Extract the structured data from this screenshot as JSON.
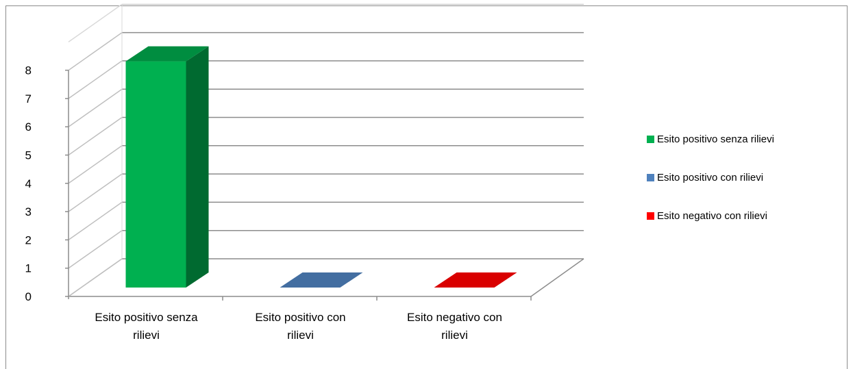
{
  "chart_data": {
    "type": "bar",
    "style": "3d-column",
    "categories": [
      "Esito positivo senza rilievi",
      "Esito positivo con rilievi",
      "Esito negativo con rilievi"
    ],
    "category_lines": [
      [
        "Esito positivo senza",
        "rilievi"
      ],
      [
        "Esito positivo con",
        "rilievi"
      ],
      [
        "Esito negativo con",
        "rilievi"
      ]
    ],
    "values": [
      8,
      0,
      0
    ],
    "colors": [
      "#00b050",
      "#4f81bd",
      "#ff0000"
    ],
    "ylim": [
      0,
      8
    ],
    "yticks": [
      "0",
      "1",
      "2",
      "3",
      "4",
      "5",
      "6",
      "7",
      "8"
    ],
    "grid": true,
    "legend": {
      "position": "right",
      "entries": [
        {
          "label": "Esito positivo senza rilievi",
          "color": "#00b050"
        },
        {
          "label": "Esito positivo con rilievi",
          "color": "#4f81bd"
        },
        {
          "label": "Esito negativo con rilievi",
          "color": "#ff0000"
        }
      ]
    }
  }
}
